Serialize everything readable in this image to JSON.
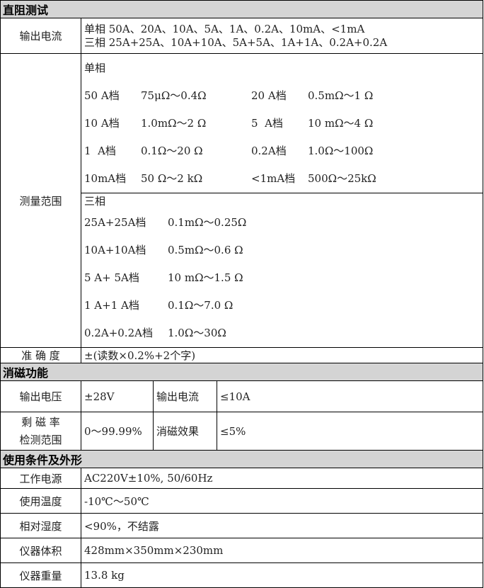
{
  "sections": {
    "dc": "直阻测试",
    "demag": "消磁功能",
    "cond": "使用条件及外形"
  },
  "dc": {
    "output_label": "输出电流",
    "output_lines": [
      "单相 50A、20A、10A、5A、1A、0.2A、10mA、<1mA",
      "三相 25A+25A、10A+10A、5A+5A、1A+1A、0.2A+0.2A"
    ],
    "range_label": "测量范围",
    "single_title": "单相",
    "single_rows": [
      [
        "50 A档",
        "75μΩ～0.4Ω",
        "20 A档",
        "0.5mΩ～1 Ω"
      ],
      [
        "10 A档",
        "1.0mΩ～2 Ω",
        "5  A档",
        "10 mΩ～4 Ω"
      ],
      [
        "1  A档",
        "0.1Ω～20 Ω",
        "0.2A档",
        "1.0Ω～100Ω"
      ],
      [
        "10mA档",
        "50 Ω～2 kΩ",
        "<1mA档",
        "500Ω～25kΩ"
      ]
    ],
    "three_title": "三相",
    "three_rows": [
      [
        "25A+25A档",
        "0.1mΩ～0.25Ω"
      ],
      [
        "10A+10A档",
        "0.5mΩ～0.6 Ω"
      ],
      [
        "5 A+ 5A档",
        "10 mΩ～1.5 Ω"
      ],
      [
        "1 A+1 A档",
        "0.1Ω～7.0 Ω"
      ],
      [
        "0.2A+0.2A档",
        "1.0Ω～30Ω"
      ]
    ],
    "accuracy_label": "准 确 度",
    "accuracy_value": "±(读数×0.2%+2个字)"
  },
  "demag": {
    "voltage_label": "输出电压",
    "voltage": "±28V",
    "current_label": "输出电流",
    "current": "≤10A",
    "remanence_label_1": "剩 磁 率",
    "remanence_label_2": "检测范围",
    "remanence": "0～99.99%",
    "effect_label": "消磁效果",
    "effect": "≤5%"
  },
  "cond": [
    {
      "label": "工作电源",
      "value": "AC220V±10%, 50/60Hz"
    },
    {
      "label": "使用温度",
      "value": "-10℃～50℃"
    },
    {
      "label": "相对湿度",
      "value": "<90%，不结露"
    },
    {
      "label": "仪器体积",
      "value": "428mm×350mm×230mm"
    },
    {
      "label": "仪器重量",
      "value": "13.8 kg"
    }
  ]
}
